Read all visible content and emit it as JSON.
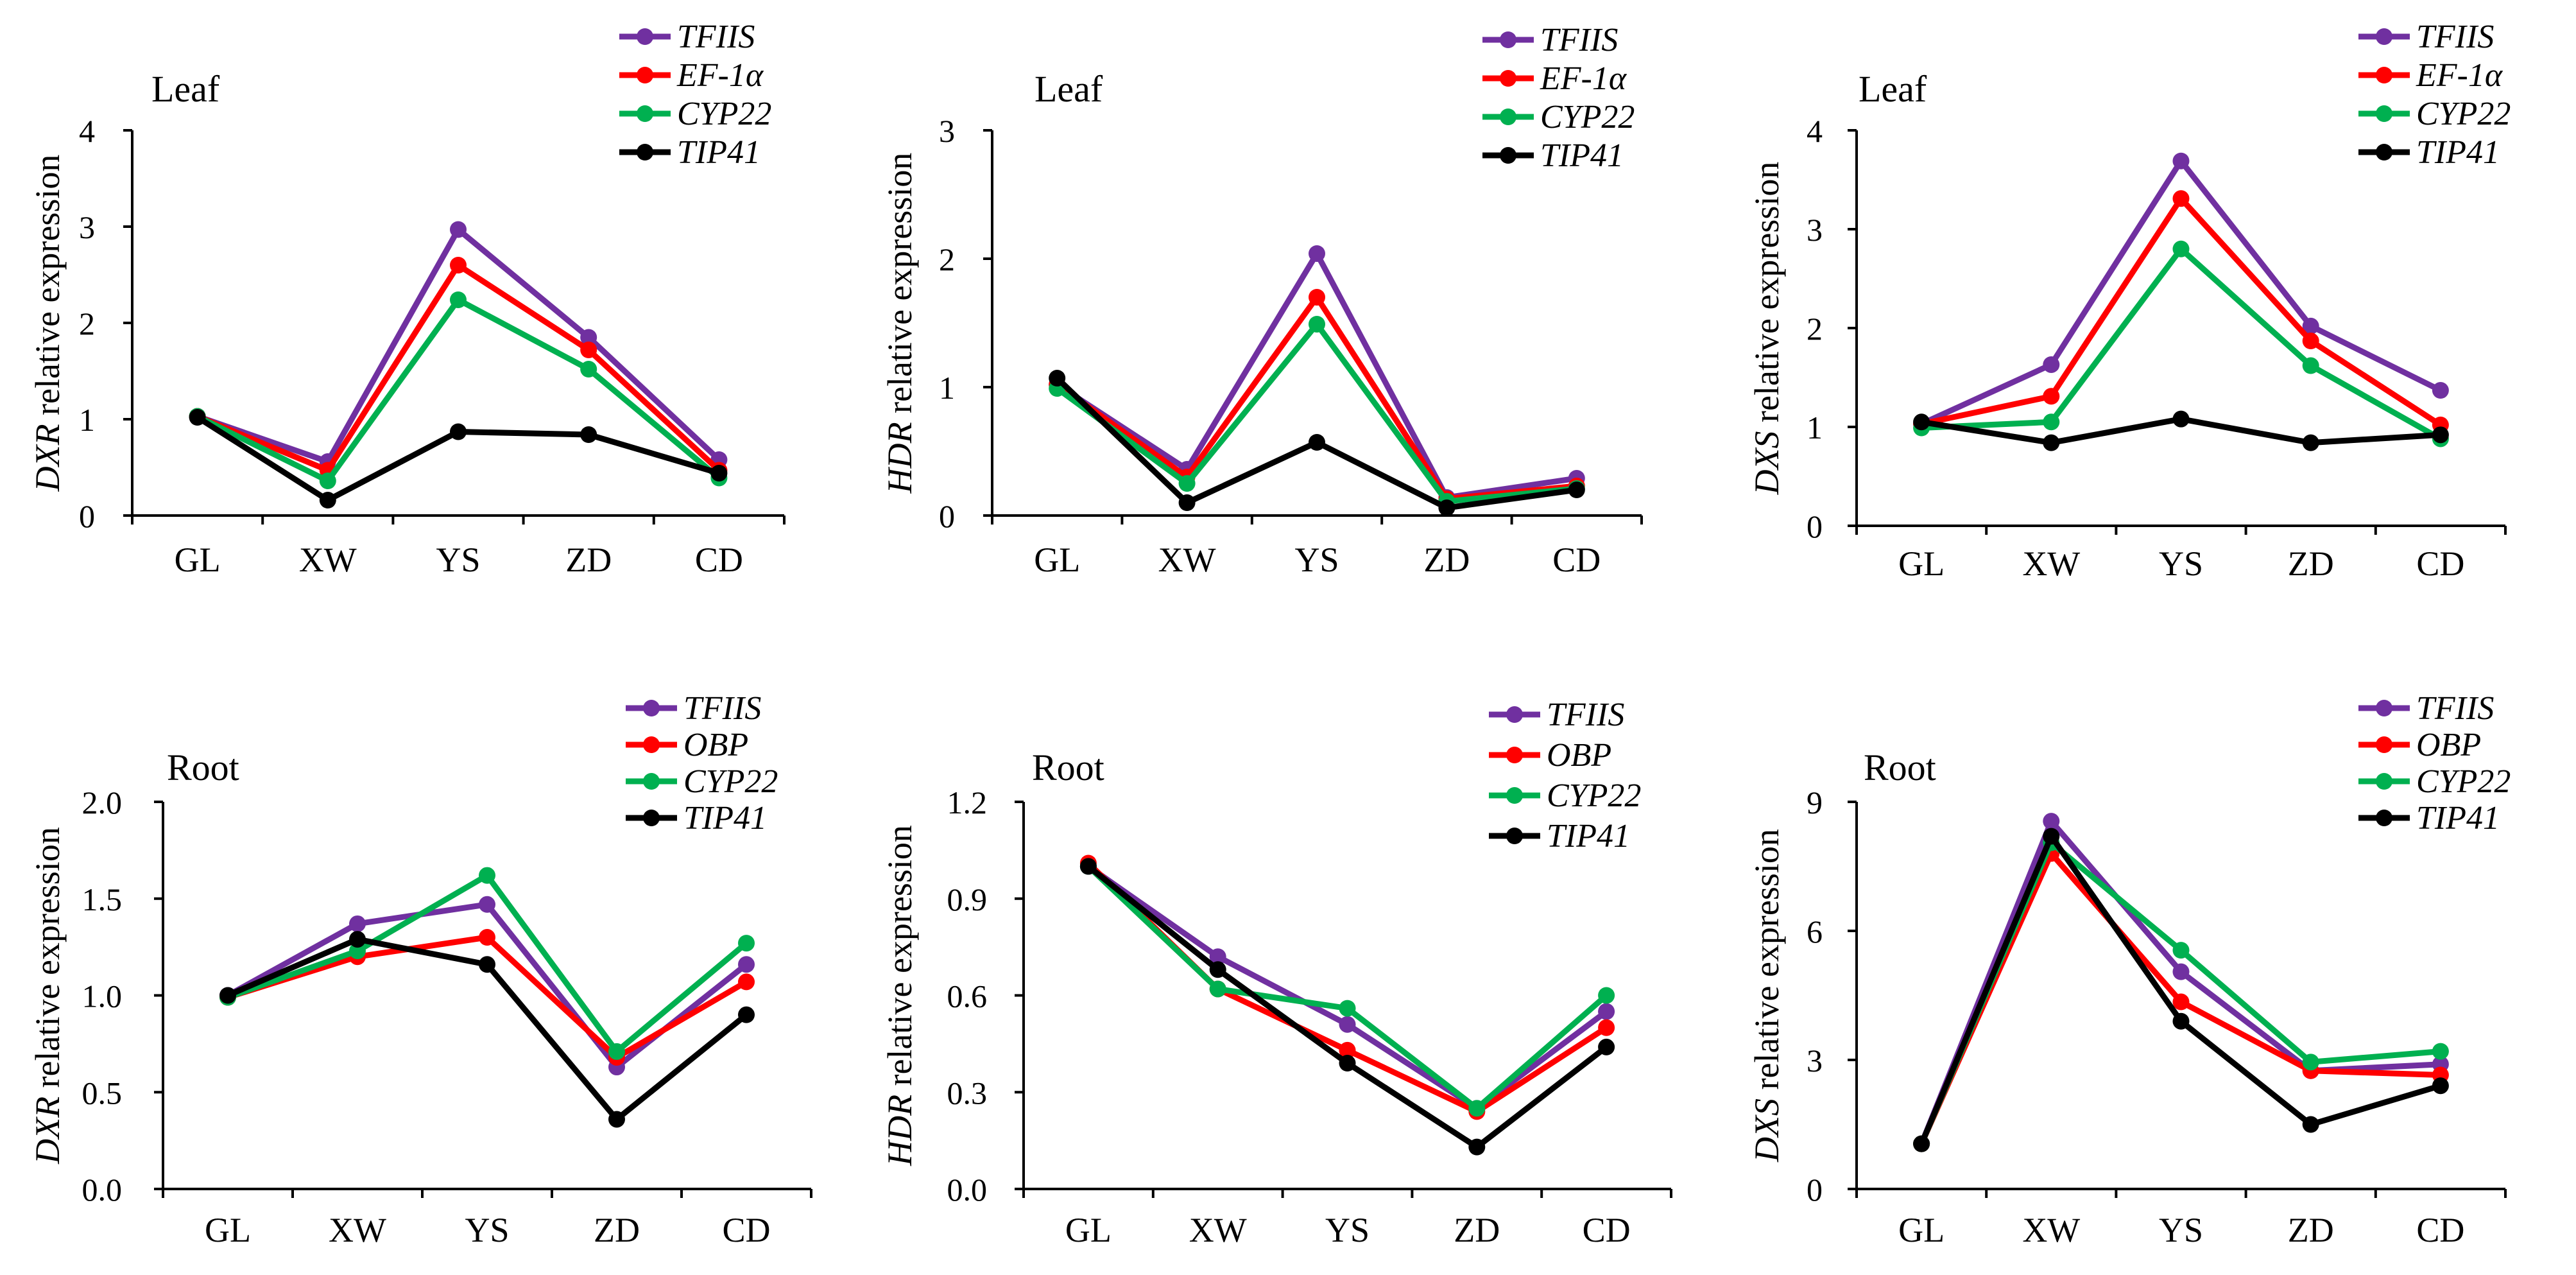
{
  "chart_data": [
    {
      "type": "line",
      "title": "Leaf",
      "ylabel_gene": "DXR",
      "ylabel_rest": " relative expression",
      "categories": [
        "GL",
        "XW",
        "YS",
        "ZD",
        "CD"
      ],
      "ylim": [
        0,
        4
      ],
      "yticks": [
        0,
        1,
        2,
        3,
        4
      ],
      "tick_decimals": 0,
      "series": [
        {
          "name": "TFIIS",
          "color": "#7030A0",
          "values": [
            1.03,
            0.56,
            2.97,
            1.85,
            0.58
          ]
        },
        {
          "name": "EF-1α",
          "color": "#FF0000",
          "values": [
            1.03,
            0.47,
            2.6,
            1.72,
            0.47
          ]
        },
        {
          "name": "CYP22",
          "color": "#00B050",
          "values": [
            1.03,
            0.36,
            2.24,
            1.52,
            0.39
          ]
        },
        {
          "name": "TIP41",
          "color": "#000000",
          "values": [
            1.02,
            0.16,
            0.87,
            0.84,
            0.44
          ]
        }
      ]
    },
    {
      "type": "line",
      "title": "Leaf",
      "ylabel_gene": "HDR",
      "ylabel_rest": " relative expression",
      "categories": [
        "GL",
        "XW",
        "YS",
        "ZD",
        "CD"
      ],
      "ylim": [
        0,
        3
      ],
      "yticks": [
        0,
        1,
        2,
        3
      ],
      "tick_decimals": 0,
      "series": [
        {
          "name": "TFIIS",
          "color": "#7030A0",
          "values": [
            1.02,
            0.36,
            2.04,
            0.14,
            0.29
          ]
        },
        {
          "name": "EF-1α",
          "color": "#FF0000",
          "values": [
            1.02,
            0.3,
            1.7,
            0.13,
            0.23
          ]
        },
        {
          "name": "CYP22",
          "color": "#00B050",
          "values": [
            0.99,
            0.25,
            1.49,
            0.11,
            0.21
          ]
        },
        {
          "name": "TIP41",
          "color": "#000000",
          "values": [
            1.07,
            0.1,
            0.57,
            0.06,
            0.2
          ]
        }
      ]
    },
    {
      "type": "line",
      "title": "Leaf",
      "ylabel_gene": "DXS",
      "ylabel_rest": " relative expression",
      "categories": [
        "GL",
        "XW",
        "YS",
        "ZD",
        "CD"
      ],
      "ylim": [
        0,
        4
      ],
      "yticks": [
        0,
        1,
        2,
        3,
        4
      ],
      "tick_decimals": 0,
      "series": [
        {
          "name": "TFIIS",
          "color": "#7030A0",
          "values": [
            1.03,
            1.63,
            3.69,
            2.02,
            1.37
          ]
        },
        {
          "name": "EF-1α",
          "color": "#FF0000",
          "values": [
            1.03,
            1.31,
            3.31,
            1.87,
            1.02
          ]
        },
        {
          "name": "CYP22",
          "color": "#00B050",
          "values": [
            0.99,
            1.05,
            2.8,
            1.62,
            0.88
          ]
        },
        {
          "name": "TIP41",
          "color": "#000000",
          "values": [
            1.05,
            0.84,
            1.08,
            0.84,
            0.92
          ]
        }
      ]
    },
    {
      "type": "line",
      "title": "Root",
      "ylabel_gene": "DXR",
      "ylabel_rest": " relative expression",
      "categories": [
        "GL",
        "XW",
        "YS",
        "ZD",
        "CD"
      ],
      "ylim": [
        0,
        2
      ],
      "yticks": [
        0,
        0.5,
        1,
        1.5,
        2
      ],
      "tick_decimals": 1,
      "series": [
        {
          "name": "TFIIS",
          "color": "#7030A0",
          "values": [
            1.0,
            1.37,
            1.47,
            0.63,
            1.16
          ]
        },
        {
          "name": "OBP",
          "color": "#FF0000",
          "values": [
            0.99,
            1.2,
            1.3,
            0.68,
            1.07
          ]
        },
        {
          "name": "CYP22",
          "color": "#00B050",
          "values": [
            0.99,
            1.23,
            1.62,
            0.71,
            1.27
          ]
        },
        {
          "name": "TIP41",
          "color": "#000000",
          "values": [
            1.0,
            1.29,
            1.16,
            0.36,
            0.9
          ]
        }
      ]
    },
    {
      "type": "line",
      "title": "Root",
      "ylabel_gene": "HDR",
      "ylabel_rest": " relative expression",
      "categories": [
        "GL",
        "XW",
        "YS",
        "ZD",
        "CD"
      ],
      "ylim": [
        0,
        1.2
      ],
      "yticks": [
        0,
        0.3,
        0.6,
        0.9,
        1.2
      ],
      "tick_decimals": 1,
      "series": [
        {
          "name": "TFIIS",
          "color": "#7030A0",
          "values": [
            1.0,
            0.72,
            0.51,
            0.25,
            0.55
          ]
        },
        {
          "name": "OBP",
          "color": "#FF0000",
          "values": [
            1.01,
            0.62,
            0.43,
            0.24,
            0.5
          ]
        },
        {
          "name": "CYP22",
          "color": "#00B050",
          "values": [
            1.0,
            0.62,
            0.56,
            0.25,
            0.6
          ]
        },
        {
          "name": "TIP41",
          "color": "#000000",
          "values": [
            1.0,
            0.68,
            0.39,
            0.13,
            0.44
          ]
        }
      ]
    },
    {
      "type": "line",
      "title": "Root",
      "ylabel_gene": "DXS",
      "ylabel_rest": " relative expression",
      "categories": [
        "GL",
        "XW",
        "YS",
        "ZD",
        "CD"
      ],
      "ylim": [
        0,
        9
      ],
      "yticks": [
        0,
        3,
        6,
        9
      ],
      "tick_decimals": 0,
      "series": [
        {
          "name": "TFIIS",
          "color": "#7030A0",
          "values": [
            1.05,
            8.55,
            5.05,
            2.75,
            2.9
          ]
        },
        {
          "name": "OBP",
          "color": "#FF0000",
          "values": [
            1.05,
            7.8,
            4.35,
            2.75,
            2.65
          ]
        },
        {
          "name": "CYP22",
          "color": "#00B050",
          "values": [
            1.05,
            8.05,
            5.55,
            2.95,
            3.2
          ]
        },
        {
          "name": "TIP41",
          "color": "#000000",
          "values": [
            1.05,
            8.2,
            3.9,
            1.5,
            2.4
          ]
        }
      ]
    }
  ]
}
